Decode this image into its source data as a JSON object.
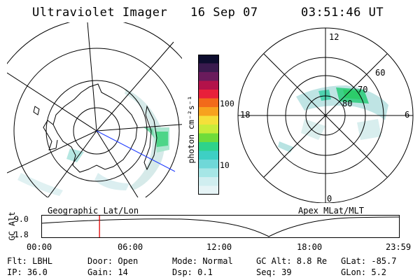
{
  "header": {
    "instrument": "Ultraviolet Imager",
    "date": "16 Sep 07",
    "time": "03:51:46 UT"
  },
  "left_panel": {
    "caption": "Geographic Lat/Lon"
  },
  "colorbar": {
    "label": "photon cm⁻²s⁻¹",
    "ticks": [
      "100",
      "10"
    ],
    "colors_top_to_bottom": [
      "#0d0d2e",
      "#3a1a4e",
      "#6a1b5c",
      "#b3124a",
      "#e8203a",
      "#f26a1a",
      "#f7a21e",
      "#f5e03a",
      "#c9ec3a",
      "#6fdc3a",
      "#2ed38a",
      "#3ecfc4",
      "#6fd8d8",
      "#a6e6e6",
      "#d0eef0",
      "#e6f4f6"
    ]
  },
  "right_panel": {
    "caption": "Apex  MLat/MLT",
    "mlt_labels": [
      "12",
      "18",
      "6",
      "0"
    ],
    "lat_labels": [
      "60",
      "70",
      "80"
    ]
  },
  "altitude_plot": {
    "ylabel": "GC Alt",
    "yticks": [
      "9.0",
      "1.8"
    ],
    "xticks": [
      "00:00",
      "06:00",
      "12:00",
      "18:00",
      "23:59"
    ],
    "marker_fraction": 0.1624
  },
  "info": {
    "row1": {
      "filter": "Flt: LBHL",
      "door": "Door: Open",
      "mode": "Mode: Normal",
      "gc_alt": "GC Alt: 8.8 Re",
      "glat": "GLat:  -85.7"
    },
    "row2": {
      "ip": "IP: 36.0",
      "gain": "Gain: 14",
      "dsp": "Dsp:    0.1",
      "seq": "Seq: 39",
      "glon": "GLon:    5.2"
    }
  }
}
